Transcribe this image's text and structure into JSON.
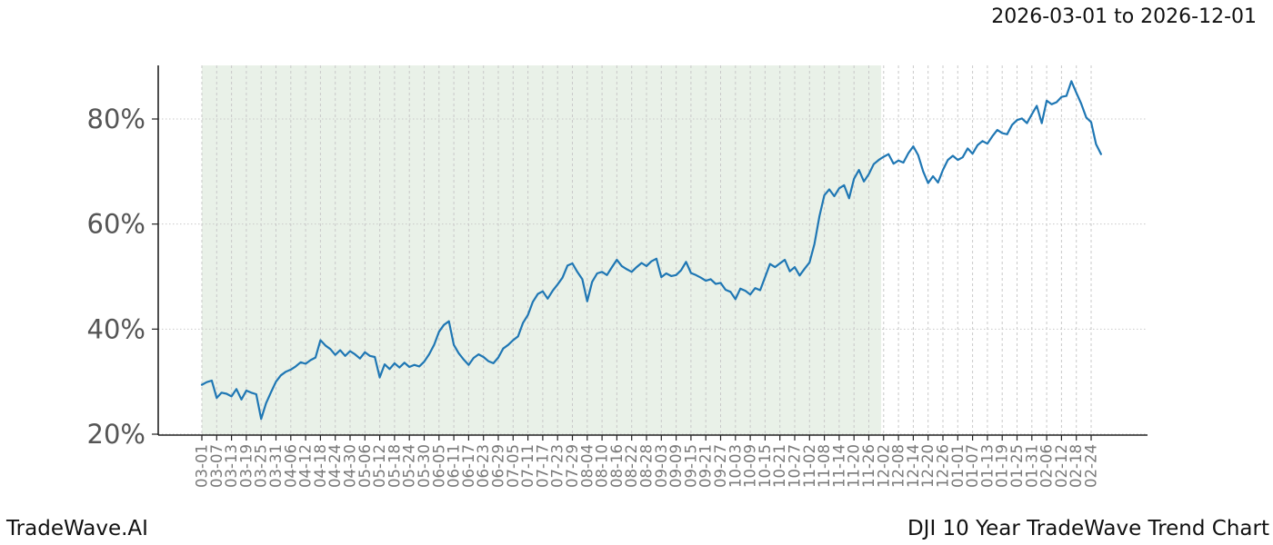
{
  "header": {
    "title": "2026-03-01 to 2026-12-01"
  },
  "footer": {
    "left": "TradeWave.AI",
    "right": "DJI 10 Year TradeWave Trend Chart"
  },
  "chart_data": {
    "type": "line",
    "title": "2026-03-01 to 2026-12-01",
    "xlabel": "",
    "ylabel": "",
    "legend": "none",
    "grid": {
      "vertical": "dashed",
      "horizontal": "dotted",
      "color": "#c9c9c9"
    },
    "x_tick_labels": [
      "03-01",
      "03-07",
      "03-13",
      "03-19",
      "03-25",
      "03-31",
      "04-06",
      "04-12",
      "04-18",
      "04-24",
      "04-30",
      "05-06",
      "05-12",
      "05-18",
      "05-24",
      "05-30",
      "06-05",
      "06-11",
      "06-17",
      "06-23",
      "06-29",
      "07-05",
      "07-11",
      "07-17",
      "07-23",
      "07-29",
      "08-04",
      "08-10",
      "08-16",
      "08-22",
      "08-28",
      "09-03",
      "09-09",
      "09-15",
      "09-21",
      "09-27",
      "10-03",
      "10-09",
      "10-15",
      "10-21",
      "10-27",
      "11-02",
      "11-08",
      "11-14",
      "11-20",
      "11-26",
      "12-02",
      "12-08",
      "12-14",
      "12-20",
      "12-26",
      "01-01",
      "01-07",
      "01-13",
      "01-19",
      "01-25",
      "01-31",
      "02-06",
      "02-12",
      "02-18",
      "02-24"
    ],
    "x_tick_day_interval": 6,
    "y_tick_values": [
      20,
      40,
      60,
      80
    ],
    "y_tick_labels": [
      "20%",
      "40%",
      "60%",
      "80%"
    ],
    "ylim": [
      19.8,
      90.3
    ],
    "shaded_region": {
      "start_day": 0,
      "end_day": 275,
      "start_label": "03-01",
      "end_label": "12-01",
      "color": "#e9f1e8"
    },
    "series": [
      {
        "name": "DJI TradeWave trend",
        "color": "#1f77b4",
        "start_day": 0,
        "day_step": 2,
        "values": [
          29.4,
          29.9,
          30.2,
          26.9,
          27.9,
          27.7,
          27.2,
          28.6,
          26.6,
          28.3,
          27.9,
          27.6,
          22.9,
          25.9,
          28.0,
          30.0,
          31.2,
          31.9,
          32.3,
          32.9,
          33.7,
          33.4,
          34.1,
          34.6,
          37.9,
          36.9,
          36.2,
          35.1,
          36.0,
          34.9,
          35.8,
          35.2,
          34.4,
          35.6,
          34.9,
          34.7,
          30.8,
          33.3,
          32.4,
          33.5,
          32.7,
          33.6,
          32.8,
          33.2,
          32.9,
          33.8,
          35.2,
          37.0,
          39.5,
          40.8,
          41.5,
          37.0,
          35.4,
          34.2,
          33.2,
          34.5,
          35.2,
          34.7,
          33.9,
          33.5,
          34.6,
          36.3,
          37.0,
          37.9,
          38.6,
          41.2,
          42.7,
          45.2,
          46.7,
          47.2,
          45.8,
          47.3,
          48.5,
          49.8,
          52.1,
          52.5,
          50.9,
          49.5,
          45.3,
          49.0,
          50.6,
          50.9,
          50.3,
          51.8,
          53.2,
          52.0,
          51.4,
          50.9,
          51.8,
          52.6,
          52.0,
          52.9,
          53.4,
          49.9,
          50.6,
          50.1,
          50.3,
          51.2,
          52.8,
          50.7,
          50.3,
          49.8,
          49.2,
          49.5,
          48.6,
          48.8,
          47.5,
          47.1,
          45.7,
          47.7,
          47.3,
          46.6,
          47.8,
          47.4,
          49.9,
          52.4,
          51.8,
          52.5,
          53.2,
          51.0,
          51.8,
          50.2,
          51.5,
          52.7,
          56.2,
          61.5,
          65.5,
          66.6,
          65.3,
          66.8,
          67.4,
          64.9,
          68.6,
          70.3,
          68.1,
          69.5,
          71.4,
          72.2,
          72.8,
          73.3,
          71.5,
          72.1,
          71.7,
          73.5,
          74.8,
          73.1,
          70.0,
          67.8,
          69.1,
          67.9,
          70.3,
          72.2,
          73.0,
          72.2,
          72.7,
          74.4,
          73.4,
          75.0,
          75.8,
          75.3,
          76.7,
          77.9,
          77.3,
          77.1,
          78.9,
          79.8,
          80.1,
          79.2,
          80.9,
          82.5,
          79.2,
          83.5,
          82.8,
          83.2,
          84.2,
          84.4,
          87.2,
          85.0,
          82.9,
          80.3,
          79.4,
          75.2,
          73.3
        ]
      }
    ]
  },
  "colors": {
    "line": "#1f77b4",
    "shade": "#e9f1e8",
    "grid": "#c9c9c9",
    "spine": "#222222",
    "x_tick_text": "#787878",
    "y_tick_text": "#555555"
  }
}
